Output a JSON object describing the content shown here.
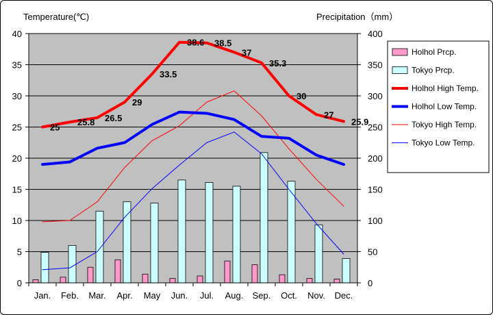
{
  "chart_data": {
    "type": "bar",
    "left_axis_title": "Temperature(℃)",
    "right_axis_title": "Precipitation（mm）",
    "categories": [
      "Jan.",
      "Feb.",
      "Mar.",
      "Apr.",
      "May",
      "Jun.",
      "Jul.",
      "Aug.",
      "Sep.",
      "Oct.",
      "Nov.",
      "Dec."
    ],
    "y_left_ticks": [
      "0",
      "5",
      "10",
      "15",
      "20",
      "25",
      "30",
      "35",
      "40"
    ],
    "y_right_ticks": [
      "0",
      "50",
      "100",
      "150",
      "200",
      "250",
      "300",
      "350",
      "400"
    ],
    "ylim_left": [
      0,
      40
    ],
    "ylim_right": [
      0,
      400
    ],
    "grid": true,
    "legend_position": "right",
    "bar_series": [
      {
        "name": "Holhol Prcp.",
        "color": "#ff99cc",
        "values": [
          5,
          9,
          25,
          37,
          14,
          7,
          11,
          35,
          29,
          13,
          7,
          6
        ]
      },
      {
        "name": "Tokyo Prcp.",
        "color": "#ccffff",
        "values": [
          49,
          60,
          115,
          130,
          128,
          165,
          161,
          155,
          209,
          163,
          93,
          39
        ]
      }
    ],
    "line_series": [
      {
        "name": "Holhol High Temp.",
        "color": "#ff0000",
        "width": 4,
        "values": [
          25,
          25.8,
          26.5,
          29,
          33.5,
          38.6,
          38.5,
          37,
          35.3,
          30,
          27,
          25.9
        ],
        "labels": [
          "25",
          "25.8",
          "26.5",
          "29",
          "33.5",
          "38.6",
          "38.5",
          "37",
          "35.3",
          "30",
          "27",
          "25.9"
        ]
      },
      {
        "name": "Holhol Low Temp.",
        "color": "#0000ff",
        "width": 4,
        "values": [
          19,
          19.4,
          21.6,
          22.5,
          25.4,
          27.4,
          27.2,
          26.2,
          23.5,
          23.2,
          20.5,
          19
        ]
      },
      {
        "name": "Tokyo High Temp.",
        "color": "#ff0000",
        "width": 1,
        "values": [
          9.8,
          10,
          13,
          18.5,
          22.8,
          25.2,
          29,
          30.8,
          26.8,
          21.5,
          16.6,
          12.3
        ]
      },
      {
        "name": "Tokyo Low Temp.",
        "color": "#0000ff",
        "width": 1,
        "values": [
          2.1,
          2.4,
          5,
          10.5,
          15.1,
          18.9,
          22.5,
          24.2,
          20.7,
          15,
          9.5,
          4.6
        ]
      }
    ]
  }
}
